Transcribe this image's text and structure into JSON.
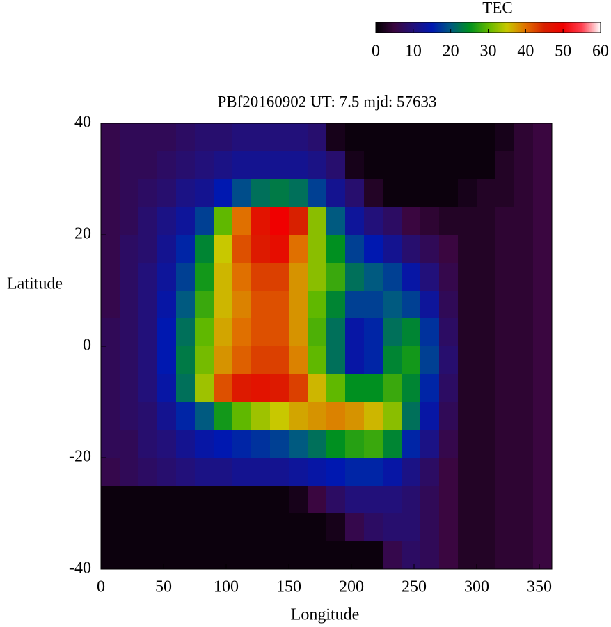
{
  "chart_data": {
    "type": "heatmap",
    "title": "PBf20160902  UT: 7.5  mjd: 57633",
    "x_label": "Longitude",
    "y_label": "Latitude",
    "colorbar_label": "TEC",
    "x": [
      7.5,
      22.5,
      37.5,
      52.5,
      67.5,
      82.5,
      97.5,
      112.5,
      127.5,
      142.5,
      157.5,
      172.5,
      187.5,
      202.5,
      217.5,
      232.5,
      247.5,
      262.5,
      277.5,
      292.5,
      307.5,
      322.5,
      337.5,
      352.5
    ],
    "y": [
      37.5,
      32.5,
      27.5,
      22.5,
      17.5,
      12.5,
      7.5,
      2.5,
      -2.5,
      -7.5,
      -12.5,
      -17.5,
      -22.5,
      -27.5,
      -32.5,
      -37.5
    ],
    "values": [
      [
        6,
        7,
        7,
        7,
        8,
        9,
        9,
        10,
        10,
        10,
        10,
        9,
        2,
        1,
        1,
        1,
        1,
        1,
        1,
        1,
        1,
        2,
        4,
        5
      ],
      [
        6,
        7,
        7,
        8,
        9,
        10,
        11,
        12,
        12,
        12,
        12,
        11,
        9,
        2,
        1,
        1,
        1,
        1,
        1,
        1,
        1,
        3,
        4,
        5
      ],
      [
        6,
        7,
        8,
        9,
        11,
        12,
        15,
        19,
        22,
        23,
        22,
        18,
        12,
        9,
        3,
        1,
        1,
        1,
        1,
        2,
        3,
        3,
        4,
        5
      ],
      [
        6,
        7,
        9,
        11,
        13,
        18,
        30,
        40,
        47,
        50,
        45,
        32,
        20,
        13,
        10,
        8,
        5,
        4,
        3,
        3,
        3,
        4,
        4,
        5
      ],
      [
        6,
        8,
        9,
        12,
        16,
        24,
        35,
        42,
        46,
        48,
        40,
        32,
        25,
        18,
        15,
        12,
        9,
        7,
        5,
        3,
        3,
        4,
        4,
        5
      ],
      [
        6,
        8,
        10,
        13,
        18,
        26,
        36,
        40,
        43,
        43,
        38,
        32,
        28,
        22,
        20,
        18,
        14,
        10,
        6,
        3,
        3,
        4,
        4,
        5
      ],
      [
        6,
        8,
        10,
        14,
        20,
        28,
        36,
        39,
        42,
        42,
        38,
        30,
        24,
        18,
        18,
        20,
        18,
        13,
        7,
        3,
        3,
        4,
        4,
        5
      ],
      [
        7,
        8,
        10,
        15,
        22,
        30,
        37,
        40,
        42,
        42,
        38,
        29,
        22,
        14,
        16,
        22,
        24,
        17,
        8,
        3,
        3,
        4,
        4,
        5
      ],
      [
        7,
        8,
        10,
        15,
        23,
        31,
        38,
        41,
        43,
        43,
        39,
        30,
        22,
        14,
        16,
        24,
        26,
        18,
        9,
        3,
        3,
        4,
        4,
        5
      ],
      [
        7,
        8,
        10,
        14,
        22,
        33,
        42,
        46,
        47,
        46,
        43,
        36,
        30,
        25,
        25,
        28,
        24,
        16,
        8,
        3,
        3,
        4,
        4,
        5
      ],
      [
        7,
        8,
        9,
        12,
        16,
        20,
        26,
        30,
        33,
        35,
        37,
        38,
        39,
        38,
        36,
        32,
        22,
        14,
        7,
        3,
        3,
        4,
        4,
        5
      ],
      [
        7,
        7,
        9,
        10,
        12,
        14,
        15,
        16,
        17,
        18,
        20,
        22,
        25,
        27,
        28,
        24,
        16,
        11,
        6,
        3,
        3,
        4,
        4,
        5
      ],
      [
        6,
        7,
        8,
        9,
        10,
        11,
        11,
        12,
        12,
        12,
        13,
        14,
        15,
        16,
        16,
        14,
        11,
        8,
        5,
        3,
        3,
        4,
        4,
        5
      ],
      [
        1,
        1,
        1,
        1,
        1,
        1,
        1,
        1,
        1,
        1,
        2,
        5,
        8,
        10,
        10,
        10,
        9,
        7,
        5,
        3,
        3,
        4,
        4,
        5
      ],
      [
        1,
        1,
        1,
        1,
        1,
        1,
        1,
        1,
        1,
        1,
        1,
        1,
        2,
        6,
        8,
        9,
        9,
        7,
        5,
        3,
        3,
        4,
        4,
        5
      ],
      [
        1,
        1,
        1,
        1,
        1,
        1,
        1,
        1,
        1,
        1,
        1,
        1,
        1,
        1,
        1,
        6,
        8,
        7,
        5,
        3,
        3,
        4,
        4,
        5
      ]
    ],
    "xlim": [
      0,
      360
    ],
    "xticks": [
      0,
      50,
      100,
      150,
      200,
      250,
      300,
      350
    ],
    "ylim": [
      -40,
      40
    ],
    "yticks": [
      -40,
      -20,
      0,
      20,
      40
    ],
    "clim": [
      0,
      60
    ],
    "cticks": [
      0,
      10,
      20,
      30,
      40,
      50,
      60
    ],
    "colormap": [
      "#000000",
      "#3a0640",
      "#22107a",
      "#0018b0",
      "#005a80",
      "#009020",
      "#60b800",
      "#c8c800",
      "#e07000",
      "#d82000",
      "#f00000",
      "#ff4050",
      "#ffffff"
    ]
  }
}
